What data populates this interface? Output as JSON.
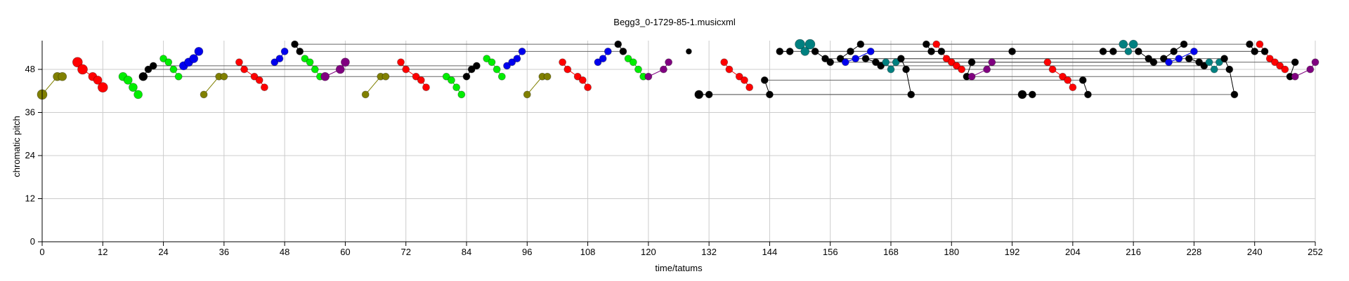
{
  "chart_data": {
    "type": "scatter",
    "title": "Begg3_0-1729-85-1.musicxml",
    "xlabel": "time/tatums",
    "ylabel": "chromatic pitch",
    "xlim": [
      0,
      252
    ],
    "ylim": [
      0,
      56
    ],
    "xticks": [
      0,
      12,
      24,
      36,
      48,
      60,
      72,
      84,
      96,
      108,
      120,
      132,
      144,
      156,
      168,
      180,
      192,
      204,
      216,
      228,
      240,
      252
    ],
    "yticks": [
      0,
      12,
      24,
      36,
      48
    ],
    "grid": true,
    "colors": {
      "olive": "#808000",
      "red": "#ff0000",
      "green": "#00ee00",
      "black": "#000000",
      "blue": "#0000ee",
      "purple": "#800080",
      "teal": "#008080",
      "grid": "#cccccc",
      "link": "#666666"
    },
    "groups": [
      {
        "color": "olive",
        "points": [
          [
            0,
            41,
            7
          ],
          [
            3,
            46,
            6
          ],
          [
            4,
            46,
            6
          ]
        ]
      },
      {
        "color": "red",
        "points": [
          [
            7,
            50,
            7
          ],
          [
            8,
            48,
            7
          ],
          [
            10,
            46,
            6
          ],
          [
            11,
            45,
            6
          ],
          [
            12,
            43,
            7
          ]
        ]
      },
      {
        "color": "green",
        "points": [
          [
            16,
            46,
            6
          ],
          [
            17,
            45,
            6
          ],
          [
            18,
            43,
            6
          ],
          [
            19,
            41,
            6
          ]
        ]
      },
      {
        "color": "black",
        "points": [
          [
            20,
            46,
            6
          ],
          [
            21,
            48,
            5
          ],
          [
            22,
            49,
            5
          ]
        ]
      },
      {
        "color": "green",
        "points": [
          [
            24,
            51,
            5
          ],
          [
            25,
            50,
            5
          ],
          [
            26,
            48,
            5
          ],
          [
            27,
            46,
            5
          ]
        ]
      },
      {
        "color": "blue",
        "points": [
          [
            28,
            49,
            6
          ],
          [
            29,
            50,
            6
          ],
          [
            30,
            51,
            6
          ],
          [
            31,
            53,
            6
          ]
        ]
      },
      {
        "color": "olive",
        "points": [
          [
            32,
            41,
            5
          ],
          [
            35,
            46,
            5
          ],
          [
            36,
            46,
            5
          ]
        ]
      },
      {
        "color": "red",
        "points": [
          [
            39,
            50,
            5
          ],
          [
            40,
            48,
            5
          ],
          [
            42,
            46,
            5
          ],
          [
            43,
            45,
            5
          ],
          [
            44,
            43,
            5
          ]
        ]
      },
      {
        "color": "blue",
        "points": [
          [
            46,
            50,
            5
          ],
          [
            47,
            51,
            5
          ],
          [
            48,
            53,
            5
          ]
        ]
      },
      {
        "color": "black",
        "points": [
          [
            50,
            55,
            5
          ],
          [
            51,
            53,
            5
          ]
        ]
      },
      {
        "color": "green",
        "points": [
          [
            52,
            51,
            5
          ],
          [
            53,
            50,
            5
          ],
          [
            54,
            48,
            5
          ],
          [
            55,
            46,
            5
          ]
        ]
      },
      {
        "color": "purple",
        "points": [
          [
            56,
            46,
            6
          ],
          [
            59,
            48,
            6
          ],
          [
            60,
            50,
            6
          ]
        ]
      },
      {
        "color": "olive",
        "points": [
          [
            64,
            41,
            5
          ],
          [
            67,
            46,
            5
          ],
          [
            68,
            46,
            5
          ]
        ]
      },
      {
        "color": "red",
        "points": [
          [
            71,
            50,
            5
          ],
          [
            72,
            48,
            5
          ],
          [
            74,
            46,
            5
          ],
          [
            75,
            45,
            5
          ],
          [
            76,
            43,
            5
          ]
        ]
      },
      {
        "color": "green",
        "points": [
          [
            80,
            46,
            5
          ],
          [
            81,
            45,
            5
          ],
          [
            82,
            43,
            5
          ],
          [
            83,
            41,
            5
          ]
        ]
      },
      {
        "color": "black",
        "points": [
          [
            84,
            46,
            5
          ],
          [
            85,
            48,
            5
          ],
          [
            86,
            49,
            5
          ]
        ]
      },
      {
        "color": "green",
        "points": [
          [
            88,
            51,
            5
          ],
          [
            89,
            50,
            5
          ],
          [
            90,
            48,
            5
          ],
          [
            91,
            46,
            5
          ]
        ]
      },
      {
        "color": "blue",
        "points": [
          [
            92,
            49,
            5
          ],
          [
            93,
            50,
            5
          ],
          [
            94,
            51,
            5
          ],
          [
            95,
            53,
            5
          ]
        ]
      },
      {
        "color": "olive",
        "points": [
          [
            96,
            41,
            5
          ],
          [
            99,
            46,
            5
          ],
          [
            100,
            46,
            5
          ]
        ]
      },
      {
        "color": "red",
        "points": [
          [
            103,
            50,
            5
          ],
          [
            104,
            48,
            5
          ],
          [
            106,
            46,
            5
          ],
          [
            107,
            45,
            5
          ],
          [
            108,
            43,
            5
          ]
        ]
      },
      {
        "color": "blue",
        "points": [
          [
            110,
            50,
            5
          ],
          [
            111,
            51,
            5
          ],
          [
            112,
            53,
            5
          ]
        ]
      },
      {
        "color": "black",
        "points": [
          [
            114,
            55,
            5
          ],
          [
            115,
            53,
            5
          ]
        ]
      },
      {
        "color": "green",
        "points": [
          [
            116,
            51,
            5
          ],
          [
            117,
            50,
            5
          ],
          [
            118,
            48,
            5
          ],
          [
            119,
            46,
            5
          ]
        ]
      },
      {
        "color": "purple",
        "points": [
          [
            120,
            46,
            5
          ],
          [
            123,
            48,
            5
          ],
          [
            124,
            50,
            5
          ]
        ]
      },
      {
        "color": "black",
        "points": [
          [
            128,
            53,
            4
          ]
        ]
      },
      {
        "color": "black",
        "points": [
          [
            130,
            41,
            6
          ],
          [
            132,
            41,
            5
          ]
        ]
      },
      {
        "color": "red",
        "points": [
          [
            135,
            50,
            5
          ],
          [
            136,
            48,
            5
          ],
          [
            138,
            46,
            5
          ],
          [
            139,
            45,
            5
          ],
          [
            140,
            43,
            5
          ]
        ]
      },
      {
        "color": "black",
        "points": [
          [
            143,
            45,
            5
          ],
          [
            144,
            41,
            5
          ]
        ]
      },
      {
        "color": "black",
        "points": [
          [
            146,
            53,
            5
          ],
          [
            148,
            53,
            5
          ]
        ]
      },
      {
        "color": "teal",
        "points": [
          [
            150,
            55,
            7
          ],
          [
            151,
            53,
            6
          ],
          [
            152,
            55,
            7
          ]
        ]
      },
      {
        "color": "black",
        "points": [
          [
            153,
            53,
            5
          ],
          [
            155,
            51,
            5
          ],
          [
            156,
            50,
            5
          ]
        ]
      },
      {
        "color": "black",
        "points": [
          [
            158,
            51,
            5
          ],
          [
            160,
            53,
            5
          ],
          [
            162,
            55,
            5
          ]
        ]
      },
      {
        "color": "blue",
        "points": [
          [
            159,
            50,
            5
          ],
          [
            161,
            51,
            5
          ],
          [
            164,
            53,
            5
          ]
        ]
      },
      {
        "color": "black",
        "points": [
          [
            163,
            51,
            5
          ],
          [
            165,
            50,
            5
          ],
          [
            166,
            49,
            5
          ]
        ]
      },
      {
        "color": "teal",
        "points": [
          [
            167,
            50,
            5
          ],
          [
            168,
            48,
            5
          ],
          [
            169,
            50,
            5
          ]
        ]
      },
      {
        "color": "black",
        "points": [
          [
            170,
            51,
            5
          ],
          [
            171,
            48,
            5
          ],
          [
            172,
            41,
            5
          ]
        ]
      },
      {
        "color": "black",
        "points": [
          [
            175,
            55,
            5
          ],
          [
            176,
            53,
            5
          ],
          [
            178,
            53,
            5
          ]
        ]
      },
      {
        "color": "red",
        "points": [
          [
            177,
            55,
            5
          ],
          [
            179,
            51,
            5
          ],
          [
            180,
            50,
            5
          ],
          [
            181,
            49,
            5
          ],
          [
            182,
            48,
            5
          ]
        ]
      },
      {
        "color": "black",
        "points": [
          [
            183,
            46,
            5
          ],
          [
            184,
            50,
            5
          ]
        ]
      },
      {
        "color": "purple",
        "points": [
          [
            184,
            46,
            5
          ],
          [
            187,
            48,
            5
          ],
          [
            188,
            50,
            5
          ]
        ]
      },
      {
        "color": "black",
        "points": [
          [
            192,
            53,
            5
          ]
        ]
      },
      {
        "color": "black",
        "points": [
          [
            194,
            41,
            6
          ],
          [
            196,
            41,
            5
          ]
        ]
      },
      {
        "color": "red",
        "points": [
          [
            199,
            50,
            5
          ],
          [
            200,
            48,
            5
          ],
          [
            202,
            46,
            5
          ],
          [
            203,
            45,
            5
          ],
          [
            204,
            43,
            5
          ]
        ]
      },
      {
        "color": "black",
        "points": [
          [
            206,
            45,
            5
          ],
          [
            207,
            41,
            5
          ]
        ]
      },
      {
        "color": "black",
        "points": [
          [
            210,
            53,
            5
          ],
          [
            212,
            53,
            5
          ]
        ]
      },
      {
        "color": "teal",
        "points": [
          [
            214,
            55,
            6
          ],
          [
            215,
            53,
            5
          ],
          [
            216,
            55,
            6
          ]
        ]
      },
      {
        "color": "black",
        "points": [
          [
            217,
            53,
            5
          ],
          [
            219,
            51,
            5
          ],
          [
            220,
            50,
            5
          ]
        ]
      },
      {
        "color": "black",
        "points": [
          [
            222,
            51,
            5
          ],
          [
            224,
            53,
            5
          ],
          [
            226,
            55,
            5
          ]
        ]
      },
      {
        "color": "blue",
        "points": [
          [
            223,
            50,
            5
          ],
          [
            225,
            51,
            5
          ],
          [
            228,
            53,
            5
          ]
        ]
      },
      {
        "color": "black",
        "points": [
          [
            227,
            51,
            5
          ],
          [
            229,
            50,
            5
          ],
          [
            230,
            49,
            5
          ]
        ]
      },
      {
        "color": "teal",
        "points": [
          [
            231,
            50,
            5
          ],
          [
            232,
            48,
            5
          ],
          [
            233,
            50,
            5
          ]
        ]
      },
      {
        "color": "black",
        "points": [
          [
            234,
            51,
            5
          ],
          [
            235,
            48,
            5
          ],
          [
            236,
            41,
            5
          ]
        ]
      },
      {
        "color": "black",
        "points": [
          [
            239,
            55,
            5
          ],
          [
            240,
            53,
            5
          ],
          [
            242,
            53,
            5
          ]
        ]
      },
      {
        "color": "red",
        "points": [
          [
            241,
            55,
            5
          ],
          [
            243,
            51,
            5
          ],
          [
            244,
            50,
            5
          ],
          [
            245,
            49,
            5
          ],
          [
            246,
            48,
            5
          ]
        ]
      },
      {
        "color": "black",
        "points": [
          [
            247,
            46,
            5
          ],
          [
            248,
            50,
            5
          ]
        ]
      },
      {
        "color": "purple",
        "points": [
          [
            248,
            46,
            5
          ],
          [
            251,
            48,
            5
          ],
          [
            252,
            50,
            5
          ]
        ]
      }
    ],
    "ties": [
      [
        20,
        46,
        84,
        46
      ],
      [
        21,
        48,
        85,
        48
      ],
      [
        22,
        49,
        86,
        49
      ],
      [
        50,
        55,
        114,
        55
      ],
      [
        51,
        53,
        115,
        53
      ],
      [
        130,
        41,
        236,
        41
      ],
      [
        132,
        41,
        196,
        41
      ],
      [
        144,
        41,
        172,
        41
      ],
      [
        143,
        45,
        206,
        45
      ],
      [
        146,
        53,
        210,
        53
      ],
      [
        148,
        53,
        212,
        53
      ],
      [
        153,
        53,
        217,
        53
      ],
      [
        155,
        51,
        219,
        51
      ],
      [
        156,
        50,
        220,
        50
      ],
      [
        158,
        51,
        222,
        51
      ],
      [
        160,
        53,
        224,
        53
      ],
      [
        162,
        55,
        226,
        55
      ],
      [
        163,
        51,
        227,
        51
      ],
      [
        165,
        50,
        229,
        50
      ],
      [
        166,
        49,
        230,
        49
      ],
      [
        170,
        51,
        234,
        51
      ],
      [
        171,
        48,
        235,
        48
      ],
      [
        175,
        55,
        239,
        55
      ],
      [
        176,
        53,
        240,
        53
      ],
      [
        178,
        53,
        242,
        53
      ],
      [
        183,
        46,
        247,
        46
      ],
      [
        184,
        50,
        248,
        50
      ]
    ]
  }
}
